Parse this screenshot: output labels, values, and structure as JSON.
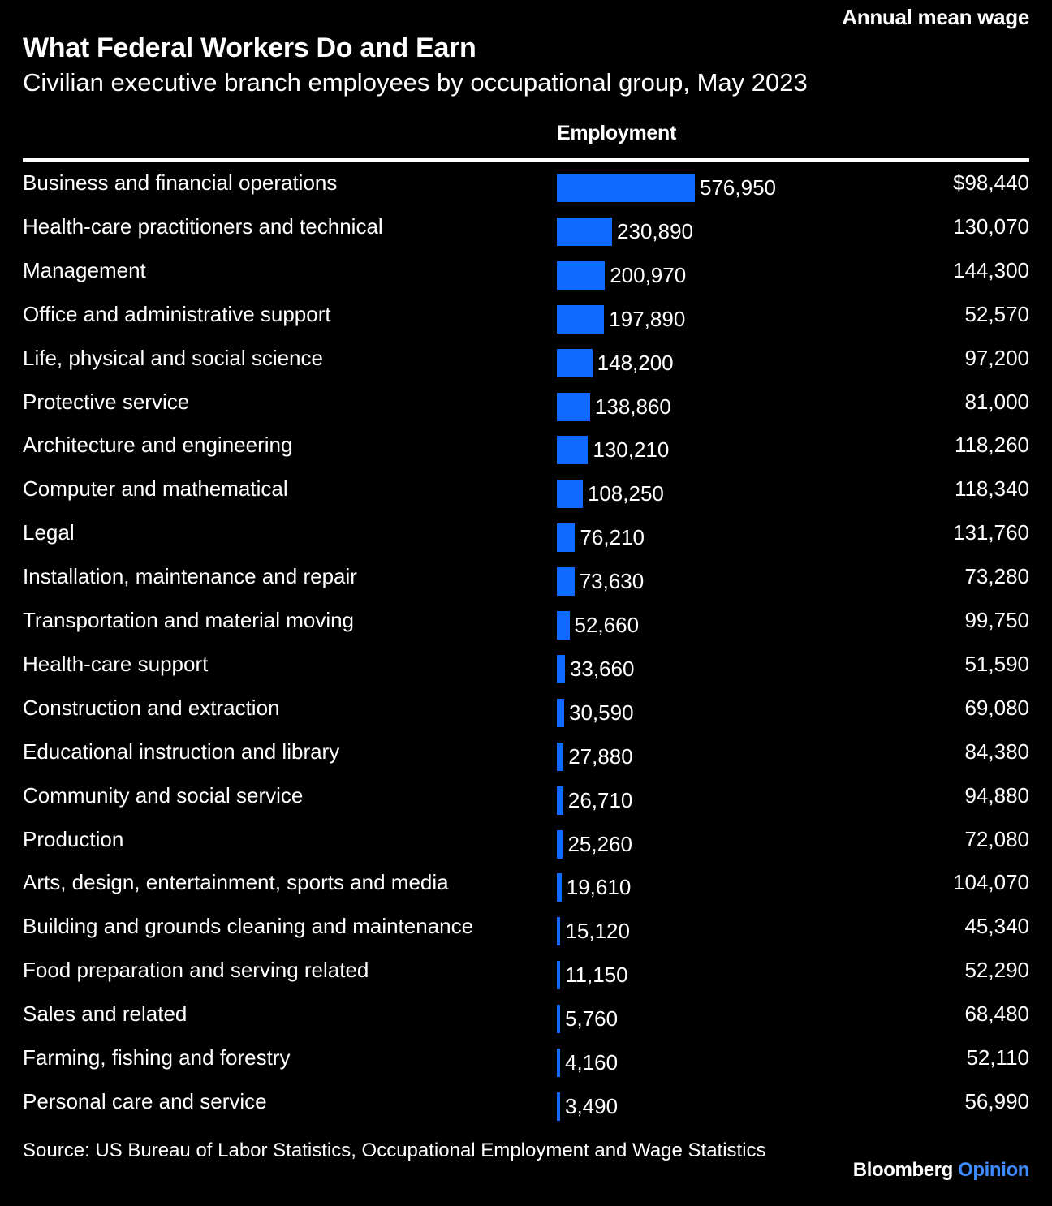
{
  "chart_data": {
    "type": "bar",
    "title": "What Federal Workers Do and Earn",
    "subtitle": "Civilian executive branch employees by occupational group, May 2023",
    "columns": {
      "employment": "Employment",
      "wage": "Annual mean wage"
    },
    "categories": [
      "Business and financial operations",
      "Health-care practitioners and technical",
      "Management",
      "Office and administrative support",
      "Life, physical and social science",
      "Protective service",
      "Architecture and engineering",
      "Computer and mathematical",
      "Legal",
      "Installation, maintenance and repair",
      "Transportation and material moving",
      "Health-care support",
      "Construction and extraction",
      "Educational instruction and library",
      "Community and social service",
      "Production",
      "Arts, design, entertainment, sports and media",
      "Building and grounds cleaning and maintenance",
      "Food preparation and serving related",
      "Sales and related",
      "Farming, fishing and forestry",
      "Personal care and service"
    ],
    "series": [
      {
        "name": "Employment",
        "values": [
          576950,
          230890,
          200970,
          197890,
          148200,
          138860,
          130210,
          108250,
          76210,
          73630,
          52660,
          33660,
          30590,
          27880,
          26710,
          25260,
          19610,
          15120,
          11150,
          5760,
          4160,
          3490
        ],
        "labels": [
          "576,950",
          "230,890",
          "200,970",
          "197,890",
          "148,200",
          "138,860",
          "130,210",
          "108,250",
          "76,210",
          "73,630",
          "52,660",
          "33,660",
          "30,590",
          "27,880",
          "26,710",
          "25,260",
          "19,610",
          "15,120",
          "11,150",
          "5,760",
          "4,160",
          "3,490"
        ]
      },
      {
        "name": "Annual mean wage",
        "values": [
          98440,
          130070,
          144300,
          52570,
          97200,
          81000,
          118260,
          118340,
          131760,
          73280,
          99750,
          51590,
          69080,
          84380,
          94880,
          72080,
          104070,
          45340,
          52290,
          68480,
          52110,
          56990
        ],
        "labels": [
          "$98,440",
          "130,070",
          "144,300",
          "52,570",
          "97,200",
          "81,000",
          "118,260",
          "118,340",
          "131,760",
          "73,280",
          "99,750",
          "51,590",
          "69,080",
          "84,380",
          "94,880",
          "72,080",
          "104,070",
          "45,340",
          "52,290",
          "68,480",
          "52,110",
          "56,990"
        ]
      }
    ],
    "xlim": [
      0,
      576950
    ],
    "bar_color": "#0f6bff"
  },
  "footer": {
    "source": "Source: US Bureau of Labor Statistics, Occupational Employment and Wage Statistics",
    "brand_main": "Bloomberg",
    "brand_sub": "Opinion"
  }
}
